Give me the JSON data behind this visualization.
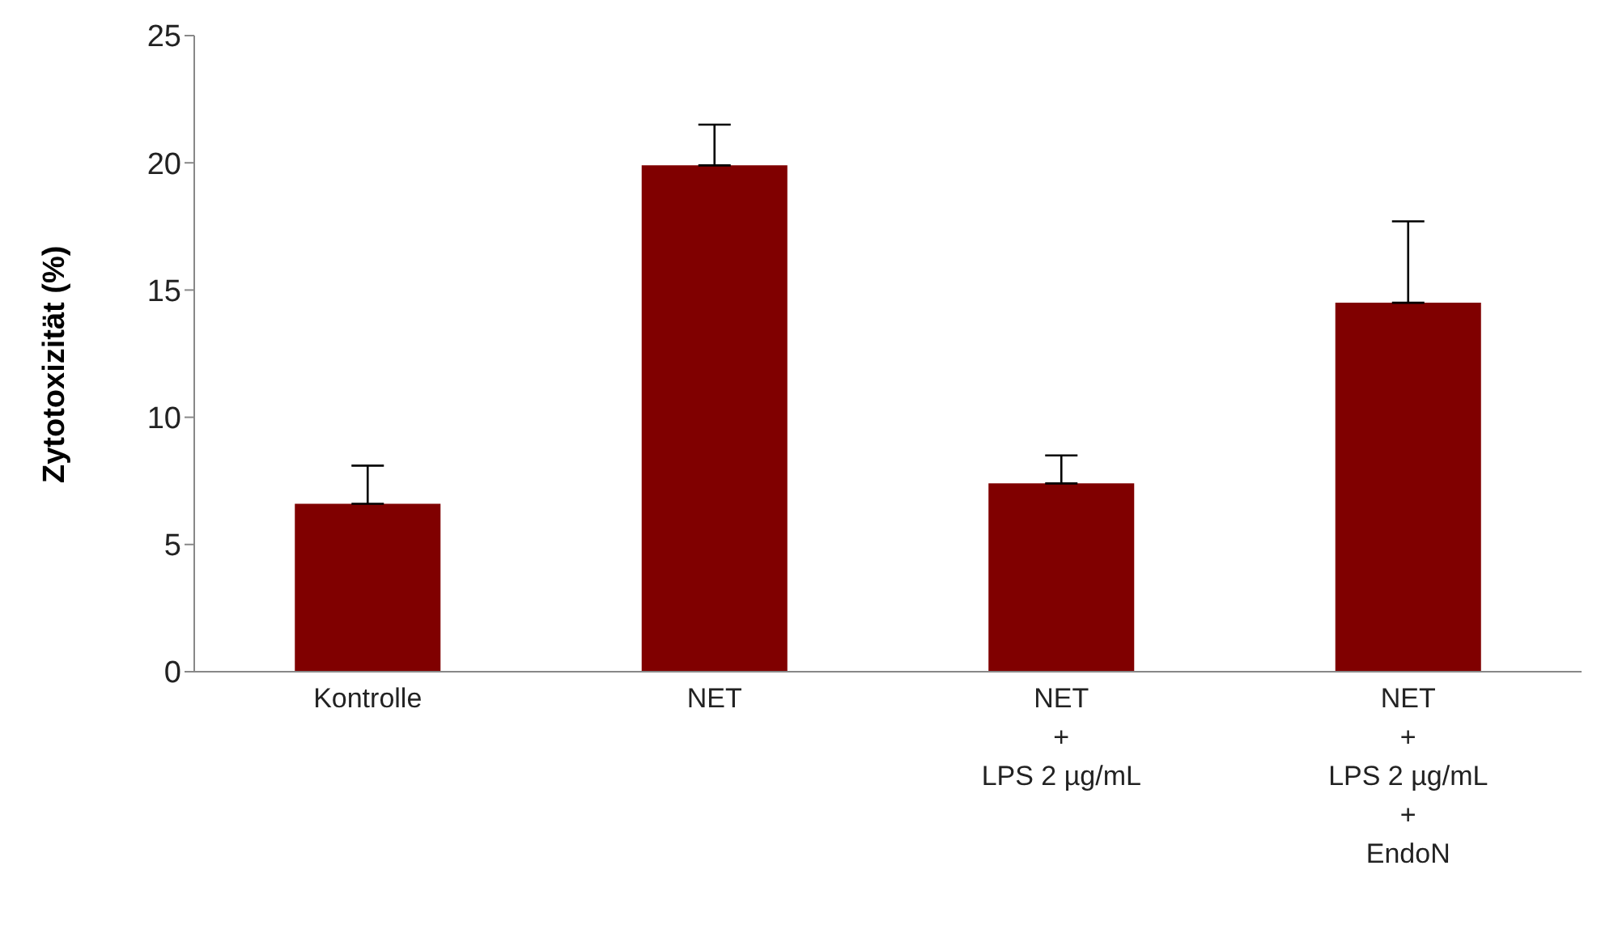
{
  "chart_data": {
    "type": "bar",
    "ylabel": "Zytotoxizität (%)",
    "categories": [
      "Kontrolle",
      "NET",
      "NET\n+\nLPS 2 µg/mL",
      "NET\n+\nLPS 2 µg/mL\n+\nEndoN"
    ],
    "values": [
      6.6,
      19.9,
      7.4,
      14.5
    ],
    "errors": [
      [
        6.6,
        8.1
      ],
      [
        19.9,
        21.5
      ],
      [
        7.4,
        8.5
      ],
      [
        14.5,
        17.7
      ]
    ],
    "color": "#800000",
    "ylim": [
      0,
      25
    ],
    "yticks": [
      0,
      5,
      10,
      15,
      20,
      25
    ],
    "grid": false
  }
}
